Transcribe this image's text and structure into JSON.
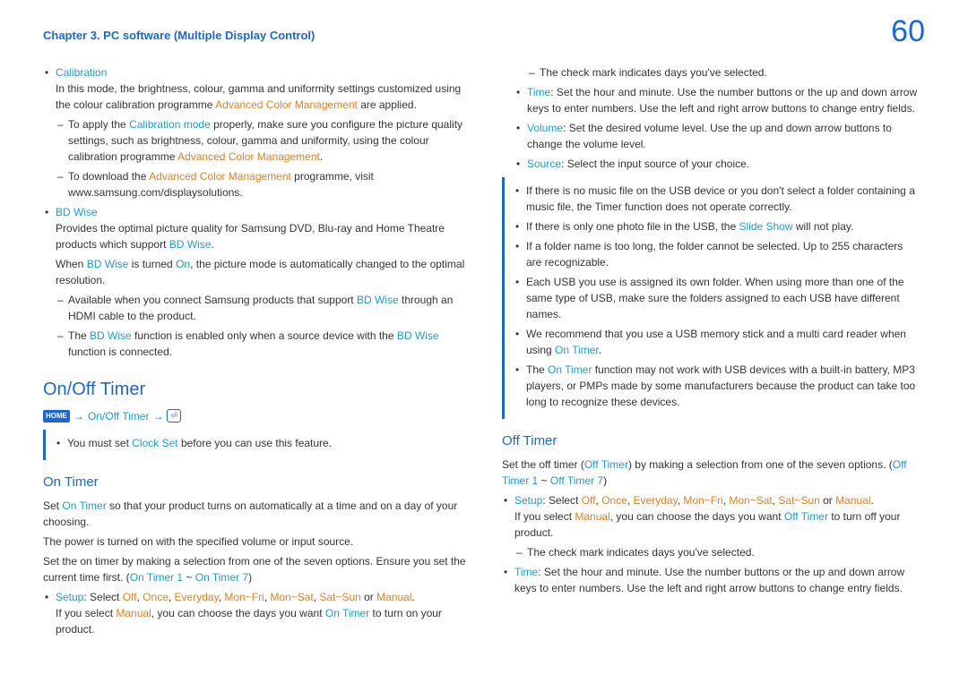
{
  "header": {
    "chapter": "Chapter 3. PC software (Multiple Display Control)",
    "pageNum": "60"
  },
  "col1": {
    "calibration": {
      "title": "Calibration",
      "p1a": "In this mode, the brightness, colour, gamma and uniformity settings customized using the colour calibration programme ",
      "acm": "Advanced Color Management",
      "p1b": " are applied.",
      "d1a": "To apply the ",
      "calmode": "Calibration mode",
      "d1b": " properly, make sure you configure the picture quality settings, such as brightness, colour, gamma and uniformity, using the colour calibration programme ",
      "d1c": ".",
      "d2a": "To download the ",
      "d2b": " programme, visit www.samsung.com/displaysolutions."
    },
    "bdwise": {
      "title": "BD Wise",
      "p1a": "Provides the optimal picture quality for Samsung DVD, Blu-ray and Home Theatre products which support ",
      "bd": "BD Wise",
      "p1b": ".",
      "p2a": "When ",
      "p2b": " is turned ",
      "on": "On",
      "p2c": ", the picture mode is automatically changed to the optimal resolution.",
      "d1a": "Available when you connect Samsung products that support ",
      "d1b": " through an HDMI cable to the product.",
      "d2a": "The ",
      "d2b": " function is enabled only when a source device with the ",
      "d2c": " function is connected."
    },
    "timer": {
      "h2": "On/Off Timer",
      "home": "HOME",
      "navpath": "On/Off Timer",
      "note1a": "You must set ",
      "clockset": "Clock Set",
      "note1b": " before you can use this feature.",
      "h3": "On Timer",
      "p1a": "Set ",
      "ontimer": "On Timer",
      "p1b": " so that your product turns on automatically at a time and on a day of your choosing.",
      "p2": "The power is turned on with the specified volume or input source.",
      "p3a": "Set the on timer by making a selection from one of the seven options. Ensure you set the current time first. (",
      "ot1": "On Timer 1",
      "tilde": " ~ ",
      "ot7": "On Timer 7",
      "p3b": ")",
      "setup": "Setup",
      "setupText": ": Select ",
      "off": "Off",
      "once": "Once",
      "everyday": "Everyday",
      "monfri": "Mon~Fri",
      "monsat": "Mon~Sat",
      "satsun": "Sat~Sun",
      "or": " or ",
      "manual": "Manual",
      "period": ".",
      "setupP2a": "If you select ",
      "setupP2b": ", you can choose the days you want ",
      "setupP2c": " to turn on your product."
    }
  },
  "col2": {
    "checkmark": "The check mark indicates days you've selected.",
    "time": "Time",
    "timeText": ": Set the hour and minute. Use the number buttons or the up and down arrow keys to enter numbers. Use the left and right arrow buttons to change entry fields.",
    "volume": "Volume",
    "volumeText": ": Set the desired volume level. Use the up and down arrow buttons to change the volume level.",
    "source": "Source",
    "sourceText": ": Select the input source of your choice.",
    "box": {
      "b1": "If there is no music file on the USB device or you don't select a folder containing a music file, the Timer function does not operate correctly.",
      "b2a": "If there is only one photo file in the USB, the ",
      "slideshow": "Slide Show",
      "b2b": " will not play.",
      "b3": "If a folder name is too long, the folder cannot be selected. Up to 255 characters are recognizable.",
      "b4": "Each USB you use is assigned its own folder. When using more than one of the same type of USB, make sure the folders assigned to each USB have different names.",
      "b5a": "We recommend that you use a USB memory stick and a multi card reader when using ",
      "ontimer": "On Timer",
      "b5b": ".",
      "b6a": "The ",
      "b6b": " function may not work with USB devices with a built-in battery, MP3 players, or PMPs made by some manufacturers because the product can take too long to recognize these devices."
    },
    "off": {
      "h3": "Off Timer",
      "p1a": "Set the off timer (",
      "offtimer": "Off Timer",
      "p1b": ") by making a selection from one of the seven options. (",
      "oft1": "Off Timer 1",
      "tilde": " ~ ",
      "oft7": "Off Timer 7",
      "p1c": ")",
      "setup": "Setup",
      "setupText": ": Select ",
      "offv": "Off",
      "once": "Once",
      "everyday": "Everyday",
      "monfri": "Mon~Fri",
      "monsat": "Mon~Sat",
      "satsun": "Sat~Sun",
      "or": " or ",
      "manual": "Manual",
      "period": ".",
      "sp2a": "If you select ",
      "sp2b": ", you can choose the days you want ",
      "sp2c": " to turn off your product.",
      "checkmark": "The check mark indicates days you've selected.",
      "time": "Time",
      "timeText": ": Set the hour and minute. Use the number buttons or the up and down arrow keys to enter numbers. Use the left and right arrow buttons to change entry fields."
    }
  }
}
